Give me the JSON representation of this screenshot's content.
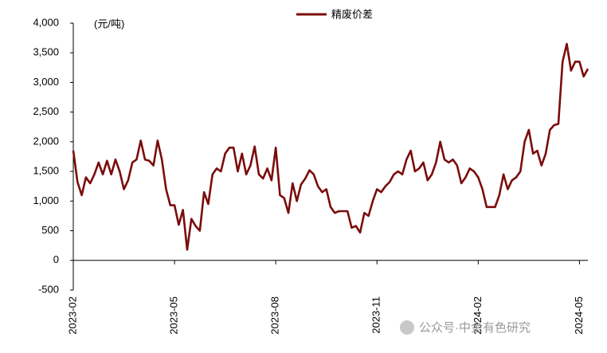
{
  "chart_data": {
    "type": "line",
    "unit_label": "(元/吨)",
    "watermark": "公众号·中金有色研究",
    "categories": [
      "2023-02",
      null,
      null,
      null,
      null,
      null,
      null,
      null,
      null,
      null,
      null,
      null,
      null,
      null,
      null,
      null,
      null,
      null,
      null,
      null,
      null,
      null,
      null,
      null,
      "2023-05",
      null,
      null,
      null,
      null,
      null,
      null,
      null,
      null,
      null,
      null,
      null,
      null,
      null,
      null,
      null,
      null,
      null,
      null,
      null,
      null,
      null,
      null,
      null,
      "2023-08",
      null,
      null,
      null,
      null,
      null,
      null,
      null,
      null,
      null,
      null,
      null,
      null,
      null,
      null,
      null,
      null,
      null,
      null,
      null,
      null,
      null,
      null,
      null,
      "2023-11",
      null,
      null,
      null,
      null,
      null,
      null,
      null,
      null,
      null,
      null,
      null,
      null,
      null,
      null,
      null,
      null,
      null,
      null,
      null,
      null,
      null,
      null,
      null,
      "2024-02",
      null,
      null,
      null,
      null,
      null,
      null,
      null,
      null,
      null,
      null,
      null,
      null,
      null,
      null,
      null,
      null,
      null,
      null,
      null,
      null,
      null,
      null,
      null,
      "2024-05",
      null,
      null
    ],
    "series": [
      {
        "name": "精废价差",
        "color": "#7b0c0c",
        "values": [
          1850,
          1320,
          1100,
          1400,
          1300,
          1450,
          1650,
          1450,
          1680,
          1450,
          1700,
          1500,
          1200,
          1350,
          1650,
          1700,
          2020,
          1700,
          1680,
          1600,
          2020,
          1700,
          1200,
          930,
          930,
          600,
          850,
          180,
          700,
          580,
          500,
          1150,
          950,
          1450,
          1550,
          1500,
          1800,
          1900,
          1900,
          1500,
          1800,
          1450,
          1600,
          1920,
          1450,
          1380,
          1550,
          1350,
          1900,
          1100,
          1050,
          800,
          1300,
          1000,
          1280,
          1380,
          1520,
          1450,
          1250,
          1150,
          1200,
          900,
          800,
          830,
          830,
          830,
          550,
          580,
          470,
          800,
          750,
          1000,
          1200,
          1150,
          1250,
          1320,
          1450,
          1500,
          1450,
          1700,
          1850,
          1500,
          1550,
          1650,
          1350,
          1450,
          1650,
          2000,
          1700,
          1650,
          1700,
          1600,
          1300,
          1400,
          1550,
          1500,
          1400,
          1200,
          900,
          900,
          900,
          1100,
          1450,
          1200,
          1350,
          1400,
          1500,
          2000,
          2200,
          1800,
          1850,
          1600,
          1800,
          2200,
          2280,
          2300,
          3350,
          3650,
          3200,
          3350,
          3350,
          3100,
          3230
        ]
      }
    ],
    "ylim": [
      -500,
      4000
    ],
    "yticks": [
      -500,
      0,
      500,
      {
        "value": 1000,
        "label": "1,000"
      },
      {
        "value": 1500,
        "label": "1,500"
      },
      {
        "value": 2000,
        "label": "2,000"
      },
      {
        "value": 2500,
        "label": "2,500"
      },
      {
        "value": 3000,
        "label": "3,000"
      },
      {
        "value": 3500,
        "label": "3,500"
      },
      {
        "value": 4000,
        "label": "4,000"
      }
    ],
    "grid": false
  }
}
